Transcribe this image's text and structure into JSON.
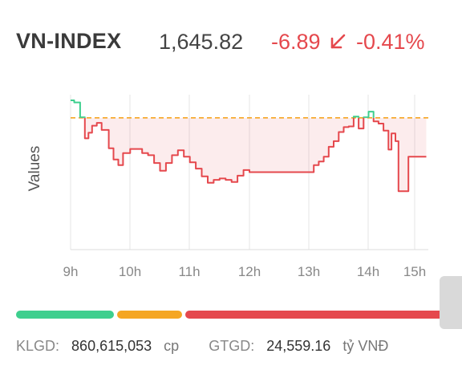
{
  "header": {
    "name": "VN-INDEX",
    "value": "1,645.82",
    "change": "-6.89",
    "change_pct": "-0.41%",
    "direction_icon": "arrow-down-left-icon",
    "down_color": "#e5484d",
    "up_color": "#3ecf8e",
    "reference_color": "#f5a623"
  },
  "chart_data": {
    "type": "line",
    "ylabel": "Values",
    "x_tick_labels": [
      "9h",
      "10h",
      "11h",
      "12h",
      "13h",
      "14h",
      "15h"
    ],
    "reference_value": 1652.71,
    "ylim": [
      1634,
      1656
    ],
    "series": [
      {
        "points": [
          [
            "9:00",
            1655.2
          ],
          [
            "9:03",
            1654.9
          ],
          [
            "9:08",
            1652.8
          ],
          [
            "9:12",
            1649.8
          ],
          [
            "9:15",
            1650.6
          ],
          [
            "9:18",
            1651.6
          ],
          [
            "9:22",
            1652.0
          ],
          [
            "9:26",
            1651.0
          ],
          [
            "9:32",
            1648.4
          ],
          [
            "9:36",
            1646.8
          ],
          [
            "9:40",
            1646.0
          ],
          [
            "9:44",
            1647.7
          ],
          [
            "9:50",
            1648.3
          ],
          [
            "9:55",
            1648.3
          ],
          [
            "10:00",
            1647.7
          ],
          [
            "10:05",
            1647.4
          ],
          [
            "10:10",
            1646.3
          ],
          [
            "10:15",
            1645.2
          ],
          [
            "10:20",
            1646.3
          ],
          [
            "10:25",
            1647.4
          ],
          [
            "10:30",
            1648.1
          ],
          [
            "10:35",
            1647.2
          ],
          [
            "10:40",
            1646.4
          ],
          [
            "10:45",
            1645.5
          ],
          [
            "10:50",
            1644.4
          ],
          [
            "10:55",
            1643.5
          ],
          [
            "11:00",
            1643.9
          ],
          [
            "11:05",
            1644.1
          ],
          [
            "11:10",
            1643.9
          ],
          [
            "11:15",
            1643.6
          ],
          [
            "11:20",
            1644.5
          ],
          [
            "11:25",
            1645.3
          ],
          [
            "11:30",
            1645.0
          ],
          [
            "13:00",
            1645.0
          ],
          [
            "13:05",
            1646.0
          ],
          [
            "13:10",
            1646.5
          ],
          [
            "13:15",
            1647.2
          ],
          [
            "13:20",
            1648.6
          ],
          [
            "13:25",
            1649.4
          ],
          [
            "13:30",
            1650.7
          ],
          [
            "13:35",
            1651.4
          ],
          [
            "13:40",
            1651.5
          ],
          [
            "13:45",
            1652.9
          ],
          [
            "13:50",
            1651.2
          ],
          [
            "13:55",
            1652.8
          ],
          [
            "14:00",
            1653.6
          ],
          [
            "14:05",
            1652.2
          ],
          [
            "14:10",
            1651.9
          ],
          [
            "14:15",
            1650.9
          ],
          [
            "14:20",
            1648.2
          ],
          [
            "14:23",
            1650.5
          ],
          [
            "14:27",
            1649.4
          ],
          [
            "14:30",
            1642.3
          ],
          [
            "14:38",
            1642.3
          ],
          [
            "14:40",
            1647.2
          ],
          [
            "14:58",
            1647.2
          ]
        ]
      }
    ]
  },
  "summary_bar": {
    "up_color": "#3ecf8e",
    "flat_color": "#f5a623",
    "down_color": "#e5484d"
  },
  "footer": {
    "volume_label": "KLGD:",
    "volume_value": "860,615,053",
    "volume_unit": "cp",
    "value_label": "GTGD:",
    "value_value": "24,559.16",
    "value_unit": "tỷ VNĐ"
  }
}
